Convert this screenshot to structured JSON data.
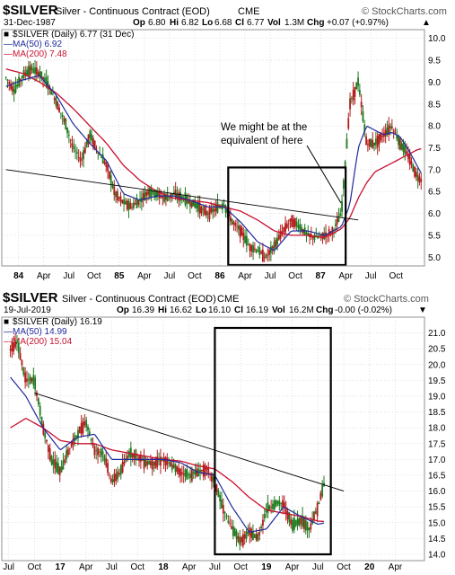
{
  "colors": {
    "price": "#1f7a1f",
    "ma50": "#1f2a9a",
    "ma200": "#c8102e",
    "grid": "#cfcfcf",
    "frame": "#909090"
  },
  "annotation": {
    "line1": "We might be at the",
    "line2": "equivalent of here"
  },
  "chart_data": [
    {
      "type": "candlestick",
      "symbol": "$SILVER",
      "title": "Silver - Continuous Contract (EOD)",
      "exchange": "CME",
      "watermark": "© StockCharts.com",
      "date": "31-Dec-1987",
      "quote": {
        "op_label": "Op",
        "op": "6.80",
        "hi_label": "Hi",
        "hi": "6.82",
        "lo_label": "Lo",
        "lo": "6.68",
        "cl_label": "Cl",
        "cl": "6.77",
        "vol_label": "Vol",
        "vol": "1.3M",
        "chg_label": "Chg",
        "chg": "+0.07 (+0.97%)"
      },
      "legend": [
        {
          "text": "$SILVER (Daily) 6.77 (31 Dec)",
          "marker": "■",
          "color": "#000000"
        },
        {
          "text": "MA(50) 6.92",
          "marker": "—",
          "color": "#1f2a9a"
        },
        {
          "text": "MA(200) 7.48",
          "marker": "—",
          "color": "#c8102e"
        }
      ],
      "ylim": [
        4.8,
        10.2
      ],
      "y_ticks": [
        "10.0",
        "9.5",
        "9.0",
        "8.5",
        "8.0",
        "7.5",
        "7.0",
        "6.5",
        "6.0",
        "5.5",
        "5.0"
      ],
      "x_ticks": [
        {
          "label": "84",
          "t": 0,
          "bold": true
        },
        {
          "label": "Apr",
          "t": 3
        },
        {
          "label": "Jul",
          "t": 6
        },
        {
          "label": "Oct",
          "t": 9
        },
        {
          "label": "85",
          "t": 12,
          "bold": true
        },
        {
          "label": "Apr",
          "t": 15
        },
        {
          "label": "Jul",
          "t": 18
        },
        {
          "label": "Oct",
          "t": 21
        },
        {
          "label": "86",
          "t": 24,
          "bold": true
        },
        {
          "label": "Apr",
          "t": 27
        },
        {
          "label": "Jul",
          "t": 30
        },
        {
          "label": "Oct",
          "t": 33
        },
        {
          "label": "87",
          "t": 36,
          "bold": true
        },
        {
          "label": "Apr",
          "t": 39
        },
        {
          "label": "Jul",
          "t": 42
        },
        {
          "label": "Oct",
          "t": 45
        }
      ],
      "price_anchors": [
        [
          -1.5,
          9.1
        ],
        [
          -0.5,
          8.8
        ],
        [
          0.5,
          9.15
        ],
        [
          1.5,
          9.3
        ],
        [
          2.5,
          9.2
        ],
        [
          3.5,
          8.95
        ],
        [
          4.5,
          8.55
        ],
        [
          5.5,
          8.1
        ],
        [
          6.5,
          7.5
        ],
        [
          7.5,
          7.2
        ],
        [
          8.5,
          7.8
        ],
        [
          9.5,
          7.4
        ],
        [
          10.5,
          7.1
        ],
        [
          11.5,
          6.45
        ],
        [
          12.5,
          6.25
        ],
        [
          13.5,
          6.15
        ],
        [
          14.5,
          6.3
        ],
        [
          15.5,
          6.5
        ],
        [
          16.5,
          6.45
        ],
        [
          17.5,
          6.35
        ],
        [
          18.5,
          6.45
        ],
        [
          19.5,
          6.35
        ],
        [
          20.5,
          6.25
        ],
        [
          21.5,
          6.15
        ],
        [
          22.5,
          6.0
        ],
        [
          23.5,
          6.1
        ],
        [
          24.5,
          6.2
        ],
        [
          25.5,
          5.8
        ],
        [
          26.5,
          5.6
        ],
        [
          27.5,
          5.25
        ],
        [
          28.5,
          5.15
        ],
        [
          29.5,
          5.0
        ],
        [
          30.5,
          5.25
        ],
        [
          31.5,
          5.6
        ],
        [
          32.5,
          5.85
        ],
        [
          33.5,
          5.7
        ],
        [
          34.5,
          5.5
        ],
        [
          35.5,
          5.45
        ],
        [
          36.5,
          5.5
        ],
        [
          37.5,
          5.6
        ],
        [
          38.5,
          6.0
        ],
        [
          39.5,
          8.5
        ],
        [
          40.5,
          9.0
        ],
        [
          41.5,
          7.6
        ],
        [
          42.5,
          7.6
        ],
        [
          43.5,
          7.8
        ],
        [
          44.5,
          8.0
        ],
        [
          45.5,
          7.6
        ],
        [
          46.5,
          7.3
        ],
        [
          47.5,
          6.85
        ],
        [
          48.0,
          6.77
        ]
      ],
      "ma50_anchors": [
        [
          -1.5,
          8.9
        ],
        [
          0.5,
          9.05
        ],
        [
          2.5,
          9.15
        ],
        [
          4.5,
          8.7
        ],
        [
          6.5,
          8.05
        ],
        [
          8.5,
          7.6
        ],
        [
          10.5,
          7.2
        ],
        [
          12.5,
          6.45
        ],
        [
          14.5,
          6.3
        ],
        [
          16.5,
          6.4
        ],
        [
          18.5,
          6.4
        ],
        [
          20.5,
          6.3
        ],
        [
          22.5,
          6.15
        ],
        [
          24.5,
          6.15
        ],
        [
          26.5,
          5.8
        ],
        [
          28.5,
          5.35
        ],
        [
          30.5,
          5.15
        ],
        [
          32.5,
          5.6
        ],
        [
          34.5,
          5.6
        ],
        [
          36.5,
          5.5
        ],
        [
          38.5,
          5.7
        ],
        [
          39.5,
          6.2
        ],
        [
          40.5,
          7.5
        ],
        [
          41.5,
          8.0
        ],
        [
          42.5,
          7.9
        ],
        [
          43.5,
          7.8
        ],
        [
          44.5,
          7.85
        ],
        [
          45.5,
          7.75
        ],
        [
          46.5,
          7.45
        ],
        [
          47.5,
          7.1
        ],
        [
          48.0,
          6.92
        ]
      ],
      "ma200_anchors": [
        [
          -1.5,
          9.3
        ],
        [
          0.5,
          9.2
        ],
        [
          2.5,
          9.0
        ],
        [
          4.5,
          8.75
        ],
        [
          6.5,
          8.4
        ],
        [
          8.5,
          8.0
        ],
        [
          10.5,
          7.6
        ],
        [
          12.5,
          7.1
        ],
        [
          14.5,
          6.75
        ],
        [
          16.5,
          6.5
        ],
        [
          18.5,
          6.35
        ],
        [
          20.5,
          6.3
        ],
        [
          22.5,
          6.25
        ],
        [
          24.5,
          6.15
        ],
        [
          26.5,
          6.05
        ],
        [
          28.5,
          5.85
        ],
        [
          30.5,
          5.6
        ],
        [
          32.5,
          5.5
        ],
        [
          34.5,
          5.5
        ],
        [
          36.5,
          5.45
        ],
        [
          38.5,
          5.65
        ],
        [
          39.5,
          5.9
        ],
        [
          40.5,
          6.35
        ],
        [
          41.5,
          6.7
        ],
        [
          42.5,
          6.95
        ],
        [
          43.5,
          7.05
        ],
        [
          44.5,
          7.15
        ],
        [
          45.5,
          7.25
        ],
        [
          46.5,
          7.35
        ],
        [
          47.5,
          7.45
        ],
        [
          48.0,
          7.48
        ]
      ],
      "trendline": {
        "x": [
          -1.5,
          40.5
        ],
        "y": [
          7.0,
          5.85
        ]
      },
      "box": {
        "x": [
          25.0,
          39.0
        ],
        "y": [
          4.8,
          7.05
        ]
      }
    },
    {
      "type": "candlestick",
      "symbol": "$SILVER",
      "title": "Silver - Continuous Contract (EOD)",
      "exchange": "CME",
      "watermark": "© StockCharts.com",
      "date": "19-Jul-2019",
      "quote": {
        "op_label": "Op",
        "op": "16.39",
        "hi_label": "Hi",
        "hi": "16.62",
        "lo_label": "Lo",
        "lo": "16.10",
        "cl_label": "Cl",
        "cl": "16.19",
        "vol_label": "Vol",
        "vol": "16.2M",
        "chg_label": "Chg",
        "chg": "-0.00 (-0.02%)"
      },
      "legend": [
        {
          "text": "$SILVER (Daily) 16.19",
          "marker": "■",
          "color": "#000000"
        },
        {
          "text": "MA(50) 14.99",
          "marker": "—",
          "color": "#1f2a9a"
        },
        {
          "text": "MA(200) 15.04",
          "marker": "—",
          "color": "#c8102e"
        }
      ],
      "ylim": [
        13.8,
        21.5
      ],
      "y_ticks": [
        "21.0",
        "20.5",
        "20.0",
        "19.5",
        "19.0",
        "18.5",
        "18.0",
        "17.5",
        "17.0",
        "16.5",
        "16.0",
        "15.5",
        "15.0",
        "14.5",
        "14.0"
      ],
      "x_ticks": [
        {
          "label": "Jul",
          "t": 0
        },
        {
          "label": "Oct",
          "t": 3
        },
        {
          "label": "17",
          "t": 6,
          "bold": true
        },
        {
          "label": "Apr",
          "t": 9
        },
        {
          "label": "Jul",
          "t": 12
        },
        {
          "label": "Oct",
          "t": 15
        },
        {
          "label": "18",
          "t": 18,
          "bold": true
        },
        {
          "label": "Apr",
          "t": 21
        },
        {
          "label": "Jul",
          "t": 24
        },
        {
          "label": "Oct",
          "t": 27
        },
        {
          "label": "19",
          "t": 30,
          "bold": true
        },
        {
          "label": "Apr",
          "t": 33
        },
        {
          "label": "Jul",
          "t": 36
        },
        {
          "label": "Oct",
          "t": 39
        },
        {
          "label": "20",
          "t": 42,
          "bold": true
        },
        {
          "label": "Apr",
          "t": 45
        }
      ],
      "price_anchors": [
        [
          0.2,
          20.5
        ],
        [
          1.0,
          20.7
        ],
        [
          2.0,
          19.5
        ],
        [
          3.0,
          19.5
        ],
        [
          4.0,
          18.0
        ],
        [
          5.0,
          17.0
        ],
        [
          6.0,
          16.6
        ],
        [
          7.0,
          17.3
        ],
        [
          8.0,
          17.8
        ],
        [
          9.0,
          18.2
        ],
        [
          10.0,
          17.3
        ],
        [
          11.0,
          17.2
        ],
        [
          12.0,
          16.3
        ],
        [
          13.0,
          16.6
        ],
        [
          14.0,
          17.2
        ],
        [
          15.0,
          17.1
        ],
        [
          16.0,
          16.9
        ],
        [
          17.0,
          16.9
        ],
        [
          18.0,
          17.0
        ],
        [
          19.0,
          16.8
        ],
        [
          20.0,
          16.6
        ],
        [
          21.0,
          16.5
        ],
        [
          22.0,
          16.6
        ],
        [
          23.0,
          16.7
        ],
        [
          24.0,
          16.3
        ],
        [
          25.0,
          15.4
        ],
        [
          26.0,
          14.8
        ],
        [
          27.0,
          14.4
        ],
        [
          28.0,
          14.7
        ],
        [
          29.0,
          14.5
        ],
        [
          30.0,
          15.4
        ],
        [
          31.0,
          15.6
        ],
        [
          32.0,
          15.6
        ],
        [
          33.0,
          14.9
        ],
        [
          34.0,
          15.1
        ],
        [
          35.0,
          14.8
        ],
        [
          36.0,
          15.5
        ],
        [
          36.7,
          16.19
        ]
      ],
      "ma50_anchors": [
        [
          0.2,
          19.6
        ],
        [
          2.0,
          19.0
        ],
        [
          4.0,
          18.0
        ],
        [
          6.0,
          17.3
        ],
        [
          8.0,
          17.7
        ],
        [
          10.0,
          17.8
        ],
        [
          12.0,
          17.0
        ],
        [
          14.0,
          17.0
        ],
        [
          16.0,
          17.0
        ],
        [
          18.0,
          17.0
        ],
        [
          20.0,
          16.9
        ],
        [
          22.0,
          16.6
        ],
        [
          24.0,
          16.5
        ],
        [
          26.0,
          15.5
        ],
        [
          28.0,
          14.7
        ],
        [
          30.0,
          14.8
        ],
        [
          32.0,
          15.5
        ],
        [
          34.0,
          15.2
        ],
        [
          36.0,
          14.95
        ],
        [
          36.7,
          14.99
        ]
      ],
      "ma200_anchors": [
        [
          0.2,
          18.0
        ],
        [
          2.0,
          18.3
        ],
        [
          4.0,
          18.0
        ],
        [
          6.0,
          17.6
        ],
        [
          8.0,
          17.5
        ],
        [
          10.0,
          17.5
        ],
        [
          12.0,
          17.3
        ],
        [
          14.0,
          17.2
        ],
        [
          16.0,
          17.1
        ],
        [
          18.0,
          17.0
        ],
        [
          20.0,
          16.95
        ],
        [
          22.0,
          16.8
        ],
        [
          24.0,
          16.7
        ],
        [
          26.0,
          16.3
        ],
        [
          28.0,
          15.8
        ],
        [
          30.0,
          15.4
        ],
        [
          32.0,
          15.3
        ],
        [
          34.0,
          15.2
        ],
        [
          36.0,
          15.05
        ],
        [
          36.7,
          15.04
        ]
      ],
      "trendline": {
        "x": [
          3.0,
          39.0
        ],
        "y": [
          19.1,
          16.0
        ]
      },
      "box": {
        "x": [
          24.0,
          37.5
        ],
        "y": [
          13.8,
          21.5
        ]
      }
    }
  ]
}
